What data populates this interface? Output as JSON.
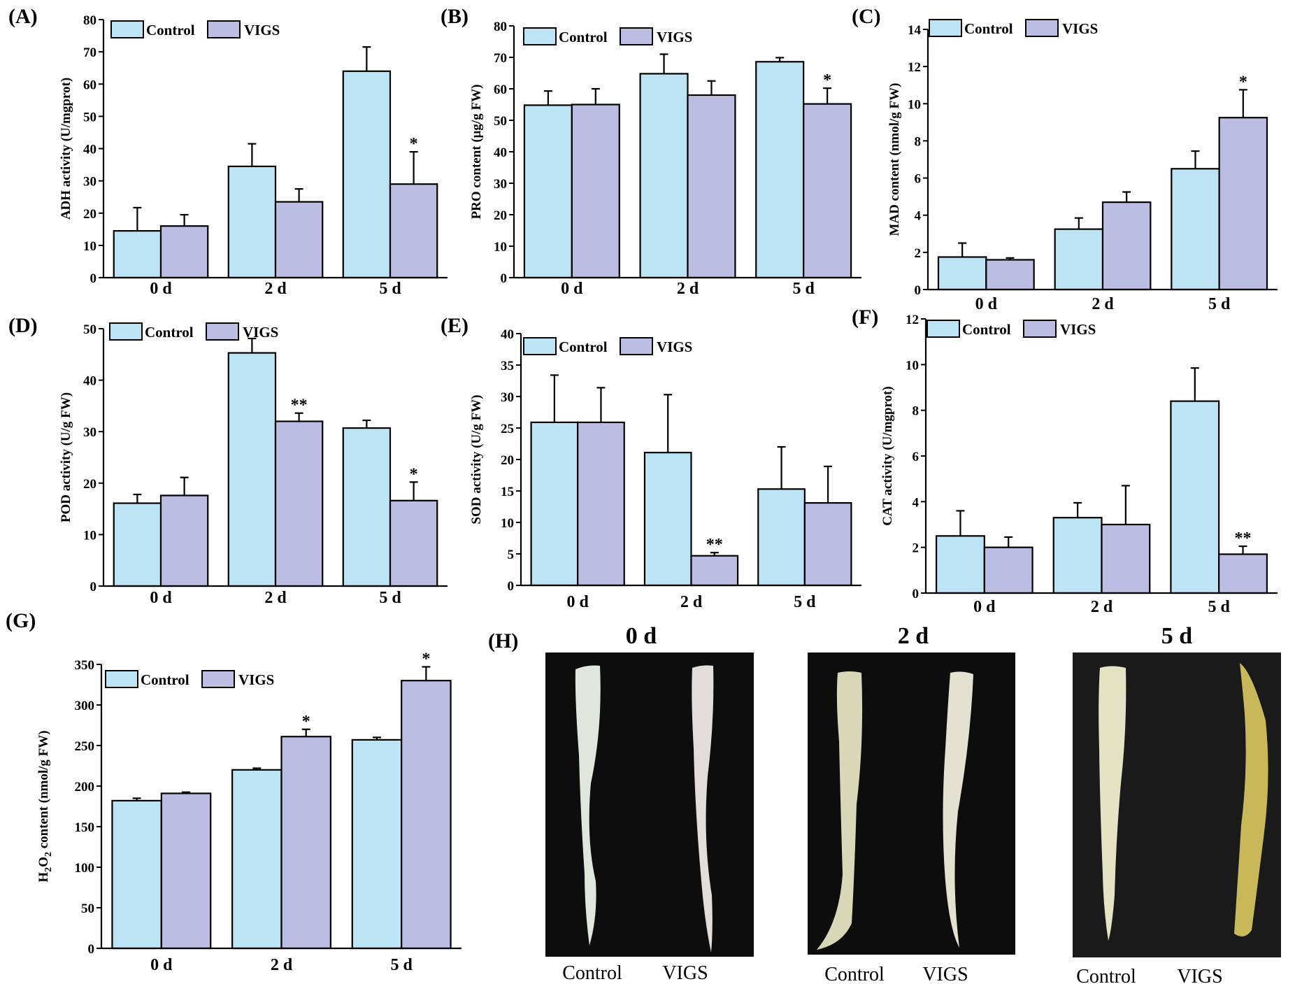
{
  "figure": {
    "photo_panel": {
      "label": "(H)",
      "photos": [
        {
          "title": "0 d",
          "labels": [
            "Control",
            "VIGS"
          ]
        },
        {
          "title": "2 d",
          "labels": [
            "Control",
            "VIGS"
          ]
        },
        {
          "title": "5 d",
          "labels": [
            "Control",
            "VIGS"
          ]
        }
      ]
    }
  },
  "colors": {
    "control": "#bde4f5",
    "vigs": "#bcbde3",
    "axis": "#000000"
  },
  "chart_data": [
    {
      "type": "bar",
      "panel": "(A)",
      "ylabel": "ADH activity (U/mgprot)",
      "categories": [
        "0 d",
        "2 d",
        "5 d"
      ],
      "ylim": [
        0,
        80
      ],
      "yticks": [
        0,
        10,
        20,
        30,
        40,
        50,
        60,
        70,
        80
      ],
      "series": [
        {
          "name": "Control",
          "values": [
            14.5,
            34.5,
            64
          ],
          "errors": [
            7.2,
            7,
            7.5
          ],
          "sig": [
            "",
            "",
            ""
          ]
        },
        {
          "name": "VIGS",
          "values": [
            16,
            23.5,
            29
          ],
          "errors": [
            3.5,
            4,
            10
          ],
          "sig": [
            "",
            "",
            "*"
          ]
        }
      ]
    },
    {
      "type": "bar",
      "panel": "(B)",
      "ylabel": "PRO content (μg/g FW)",
      "categories": [
        "0 d",
        "2 d",
        "5 d"
      ],
      "ylim": [
        0,
        80
      ],
      "yticks": [
        0,
        10,
        20,
        30,
        40,
        50,
        60,
        70,
        80
      ],
      "series": [
        {
          "name": "Control",
          "values": [
            54.8,
            64.8,
            68.6
          ],
          "errors": [
            4.5,
            6.2,
            1.3
          ],
          "sig": [
            "",
            "",
            ""
          ]
        },
        {
          "name": "VIGS",
          "values": [
            55,
            58,
            55.2
          ],
          "errors": [
            5,
            4.5,
            5
          ],
          "sig": [
            "",
            "",
            "*"
          ]
        }
      ]
    },
    {
      "type": "bar",
      "panel": "(C)",
      "ylabel": "MAD content (nmol/g FW)",
      "categories": [
        "0 d",
        "2 d",
        "5 d"
      ],
      "ylim": [
        0,
        14
      ],
      "yticks": [
        0,
        2,
        4,
        6,
        8,
        10,
        12,
        14
      ],
      "series": [
        {
          "name": "Control",
          "values": [
            1.75,
            3.25,
            6.5
          ],
          "errors": [
            0.75,
            0.6,
            0.95
          ],
          "sig": [
            "",
            "",
            ""
          ]
        },
        {
          "name": "VIGS",
          "values": [
            1.6,
            4.7,
            9.25
          ],
          "errors": [
            0.1,
            0.55,
            1.5
          ],
          "sig": [
            "",
            "",
            "*"
          ]
        }
      ]
    },
    {
      "type": "bar",
      "panel": "(D)",
      "ylabel": "POD activity (U/g FW)",
      "categories": [
        "0 d",
        "2 d",
        "5 d"
      ],
      "ylim": [
        0,
        50
      ],
      "yticks": [
        0,
        10,
        20,
        30,
        40,
        50
      ],
      "series": [
        {
          "name": "Control",
          "values": [
            16.1,
            45.3,
            30.7
          ],
          "errors": [
            1.7,
            2.8,
            1.5
          ],
          "sig": [
            "",
            "",
            ""
          ]
        },
        {
          "name": "VIGS",
          "values": [
            17.6,
            32,
            16.6
          ],
          "errors": [
            3.5,
            1.6,
            3.6
          ],
          "sig": [
            "",
            "**",
            "*"
          ]
        }
      ]
    },
    {
      "type": "bar",
      "panel": "(E)",
      "ylabel": "SOD activity (U/g FW)",
      "categories": [
        "0 d",
        "2 d",
        "5 d"
      ],
      "ylim": [
        0,
        40
      ],
      "yticks": [
        0,
        5,
        10,
        15,
        20,
        25,
        30,
        35,
        40
      ],
      "series": [
        {
          "name": "Control",
          "values": [
            25.9,
            21.1,
            15.3
          ],
          "errors": [
            7.5,
            9.2,
            6.7
          ],
          "sig": [
            "",
            "",
            ""
          ]
        },
        {
          "name": "VIGS",
          "values": [
            25.9,
            4.7,
            13.1
          ],
          "errors": [
            5.5,
            0.5,
            5.8
          ],
          "sig": [
            "",
            "**",
            ""
          ]
        }
      ]
    },
    {
      "type": "bar",
      "panel": "(F)",
      "ylabel": "CAT activity (U/mgprot)",
      "categories": [
        "0 d",
        "2 d",
        "5 d"
      ],
      "ylim": [
        0,
        12
      ],
      "yticks": [
        0,
        2,
        4,
        6,
        8,
        10,
        12
      ],
      "series": [
        {
          "name": "Control",
          "values": [
            2.5,
            3.3,
            8.4
          ],
          "errors": [
            1.1,
            0.65,
            1.45
          ],
          "sig": [
            "",
            "",
            ""
          ]
        },
        {
          "name": "VIGS",
          "values": [
            2,
            3,
            1.7
          ],
          "errors": [
            0.45,
            1.7,
            0.35
          ],
          "sig": [
            "",
            "",
            "**"
          ]
        }
      ]
    },
    {
      "type": "bar",
      "panel": "(G)",
      "ylabel": "H2O2 content (nmol/g FW)",
      "categories": [
        "0 d",
        "2 d",
        "5 d"
      ],
      "ylim": [
        0,
        350
      ],
      "yticks": [
        0,
        50,
        100,
        150,
        200,
        250,
        300,
        350
      ],
      "series": [
        {
          "name": "Control",
          "values": [
            182,
            220,
            257
          ],
          "errors": [
            3,
            2,
            3
          ],
          "sig": [
            "",
            "",
            ""
          ]
        },
        {
          "name": "VIGS",
          "values": [
            191,
            261,
            330
          ],
          "errors": [
            1.5,
            9,
            17
          ],
          "sig": [
            "",
            "*",
            "*"
          ]
        }
      ]
    }
  ]
}
